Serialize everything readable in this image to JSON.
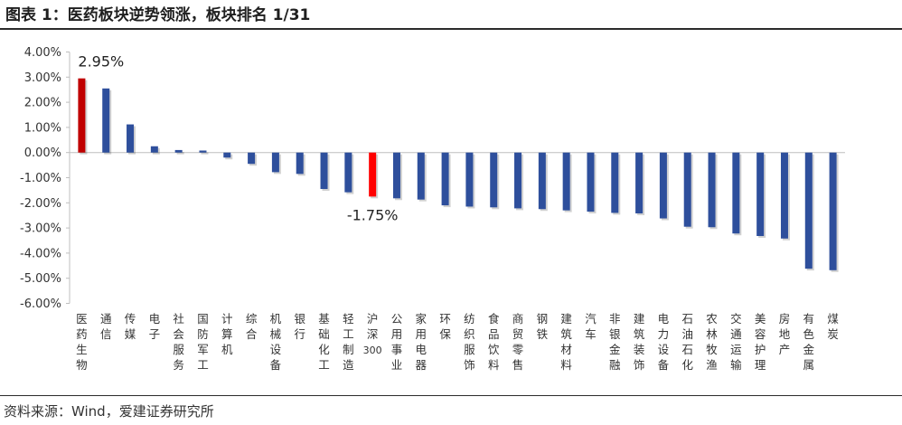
{
  "header": {
    "title": "图表 1：医药板块逆势领涨，板块排名 1/31"
  },
  "footer": {
    "source": "资料来源：Wind，爱建证券研究所"
  },
  "colors": {
    "default_bar": "#2e4f9c",
    "highlight_dark": "#c00000",
    "highlight_bright": "#ff0000"
  },
  "chart_data": {
    "type": "bar",
    "title": "",
    "xlabel": "",
    "ylabel": "",
    "ylim": [
      -6,
      4
    ],
    "y_ticks": [
      "4.00%",
      "3.00%",
      "2.00%",
      "1.00%",
      "0.00%",
      "-1.00%",
      "-2.00%",
      "-3.00%",
      "-4.00%",
      "-5.00%",
      "-6.00%"
    ],
    "y_tick_values": [
      4,
      3,
      2,
      1,
      0,
      -1,
      -2,
      -3,
      -4,
      -5,
      -6
    ],
    "categories": [
      "医药生物",
      "通信",
      "传媒",
      "电子",
      "社会服务",
      "国防军工",
      "计算机",
      "综合",
      "机械设备",
      "银行",
      "基础化工",
      "轻工制造",
      "沪深300",
      "公用事业",
      "家用电器",
      "环保",
      "纺织服饰",
      "食品饮料",
      "商贸零售",
      "钢铁",
      "建筑材料",
      "汽车",
      "非银金融",
      "建筑装饰",
      "电力设备",
      "石油石化",
      "农林牧渔",
      "交通运输",
      "美容护理",
      "房地产",
      "有色金属",
      "煤炭"
    ],
    "values": [
      2.95,
      2.55,
      1.12,
      0.25,
      0.1,
      0.08,
      -0.2,
      -0.45,
      -0.78,
      -0.85,
      -1.45,
      -1.58,
      -1.75,
      -1.82,
      -1.87,
      -2.1,
      -2.15,
      -2.18,
      -2.22,
      -2.25,
      -2.3,
      -2.35,
      -2.4,
      -2.42,
      -2.62,
      -2.95,
      -2.97,
      -3.22,
      -3.32,
      -3.42,
      -4.62,
      -4.68
    ],
    "highlights": {
      "医药生物": "highlight_dark",
      "沪深300": "highlight_bright"
    },
    "data_labels": [
      {
        "category": "医药生物",
        "text": "2.95%"
      },
      {
        "category": "沪深300",
        "text": "-1.75%"
      }
    ],
    "grid": false,
    "legend": "none"
  }
}
